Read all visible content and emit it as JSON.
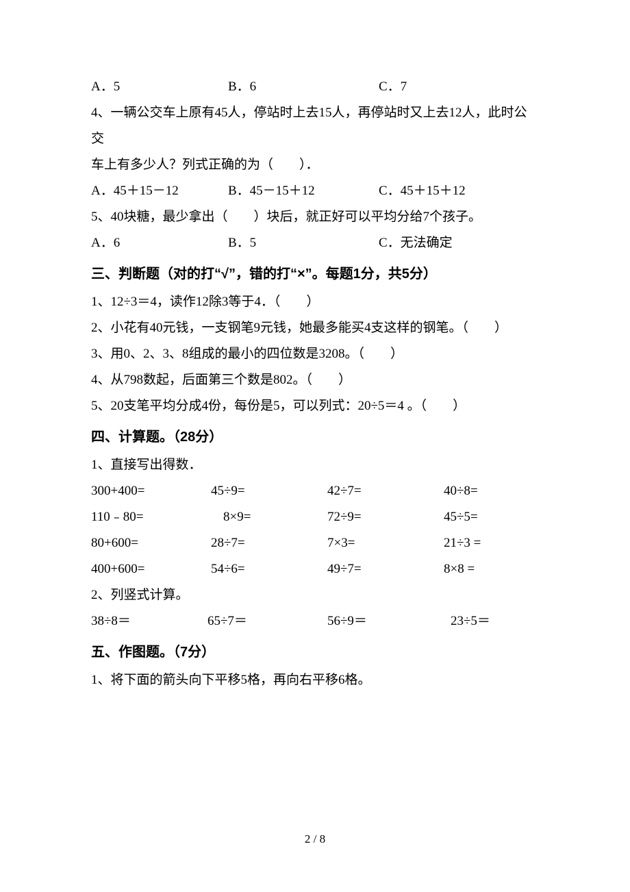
{
  "q3_options": {
    "a": "A．5",
    "b": "B．6",
    "c": "C．7"
  },
  "q4": {
    "line1": "4、一辆公交车上原有45人，停站时上去15人，再停站时又上去12人，此时公交",
    "line2": "车上有多少人？列式正确的为（　　）．",
    "opts": {
      "a": "A．45＋15－12",
      "b": "B．45－15＋12",
      "c": "C．45＋15＋12"
    }
  },
  "q5": {
    "text": "5、40块糖，最少拿出（　　）块后，就正好可以平均分给7个孩子。",
    "opts": {
      "a": "A．6",
      "b": "B．5",
      "c": "C．无法确定"
    }
  },
  "sec3": {
    "heading": "三、判断题（对的打“√”，错的打“×”。每题1分，共5分）",
    "items": [
      "1、12÷3＝4，读作12除3等于4．（　　）",
      "2、小花有40元钱，一支钢笔9元钱，她最多能买4支这样的钢笔。（　　）",
      "3、用0、2、3、8组成的最小的四位数是3208。（　　）",
      "4、从798数起，后面第三个数是802。（　　）",
      "5、20支笔平均分成4份，每份是5，可以列式：20÷5＝4 。（　　）"
    ]
  },
  "sec4": {
    "heading": "四、计算题。（28分）",
    "p1": "1、直接写出得数．",
    "rows": [
      [
        "300+400=",
        "45÷9=",
        "42÷7=",
        "40÷8="
      ],
      [
        "110﹣80=",
        "8×9=",
        "72÷9=",
        "45÷5="
      ],
      [
        "80+600=",
        "28÷7=",
        "7×3=",
        "21÷3 ="
      ],
      [
        "400+600=",
        "54÷6=",
        "49÷7=",
        "8×8 ="
      ]
    ],
    "p2": "2、列竖式计算。",
    "row2": [
      "38÷8＝",
      "65÷7＝",
      "56÷9＝",
      "23÷5＝"
    ]
  },
  "sec5": {
    "heading": "五、作图题。（7分）",
    "p1": "1、将下面的箭头向下平移5格，再向右平移6格。"
  },
  "pagenum": "2 / 8"
}
